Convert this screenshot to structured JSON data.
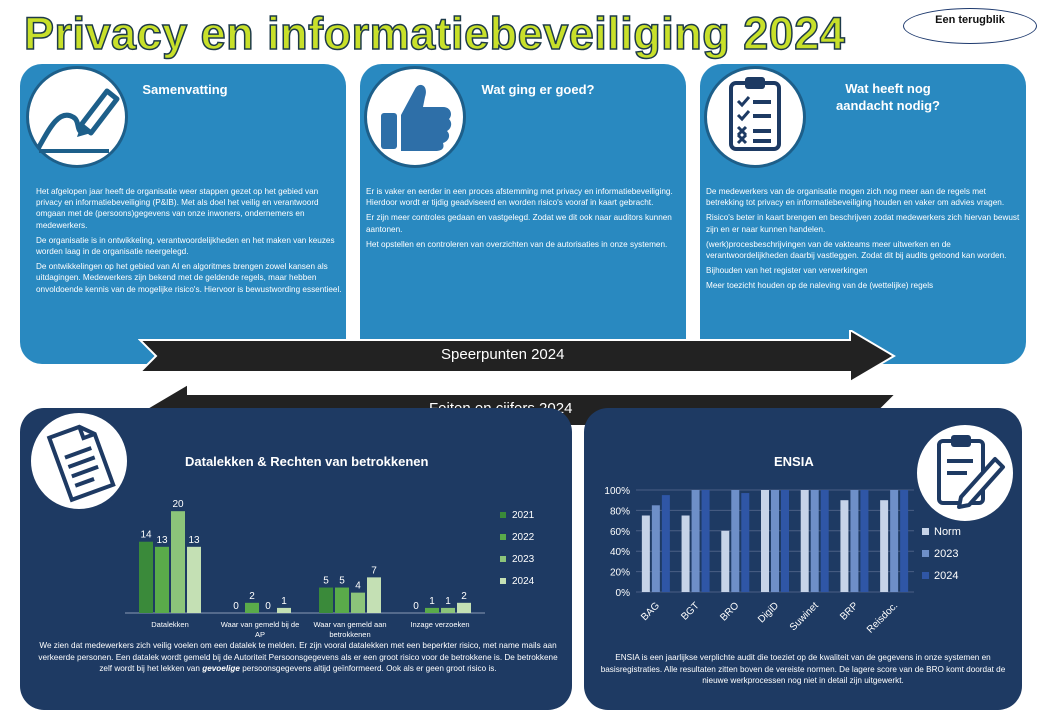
{
  "header": {
    "title": "Privacy en informatiebeveiliging 2024",
    "badge": "Een terugblik"
  },
  "panels": {
    "summary": {
      "title": "Samenvatting",
      "paragraphs": [
        "Het afgelopen jaar heeft de organisatie weer stappen gezet op het gebied van privacy en informatiebeveiliging (P&IB). Met als doel het veilig en verantwoord omgaan met de (persoons)gegevens van onze inwoners, ondernemers en medewerkers.",
        "De organisatie is in ontwikkeling, verantwoordelijkheden en het maken van keuzes worden laag in de organisatie neergelegd.",
        "De ontwikkelingen op het gebied van AI en algoritmes brengen zowel kansen als uitdagingen. Medewerkers zijn bekend met de geldende regels, maar hebben onvoldoende kennis van de mogelijke risico's. Hiervoor is bewustwording essentieel."
      ]
    },
    "good": {
      "title": "Wat ging er goed?",
      "paragraphs": [
        "Er is vaker en eerder in een proces afstemming met privacy en informatiebeveiliging. Hierdoor wordt er tijdig geadviseerd en worden risico's vooraf in kaart gebracht.",
        "Er zijn meer controles gedaan en vastgelegd. Zodat we dit ook naar auditors kunnen aantonen.",
        "Het opstellen en controleren van overzichten van de autorisaties in onze systemen."
      ]
    },
    "attention": {
      "title": "Wat heeft nog aandacht nodig?",
      "paragraphs": [
        "De medewerkers van de organisatie mogen zich nog meer aan de regels met betrekking tot privacy en informatiebeveiliging houden en vaker om advies vragen.",
        "Risico's beter in kaart brengen en beschrijven zodat medewerkers zich hiervan bewust zijn en er naar kunnen handelen.",
        "(werk)procesbeschrijvingen van de vakteams meer uitwerken en de verantwoordelijkheden daarbij vastleggen. Zodat dit bij audits getoond kan worden.",
        "Bijhouden van het register van verwerkingen",
        "Meer toezicht houden op de naleving van de (wettelijke) regels"
      ]
    }
  },
  "arrows": {
    "right_label": "Speerpunten 2024",
    "left_label": "Feiten en cijfers 2024"
  },
  "datalekken": {
    "text_before": "We zien dat medewerkers zich veilig voelen om een datalek te melden. Er zijn vooral datalekken met een beperkter risico, met name mails aan verkeerde personen. Een datalek wordt gemeld bij de Autoriteit Persoonsgegevens als er een groot risico voor de betrokkene is. De betrokkene zelf wordt bij het lekken van ",
    "text_em": "gevoelige",
    "text_after": " persoonsgegevens altijd geïnformeerd. Ook als er geen groot risico is."
  },
  "ensia": {
    "text": "ENSIA is een jaarlijkse verplichte audit die toeziet op de kwaliteit van de gegevens in onze systemen en basisregistraties. Alle resultaten zitten boven de vereiste normen. De lagere score van de BRO komt doordat de nieuwe werkprocessen nog niet in detail zijn uitgewerkt."
  },
  "colors": {
    "panel_top": "#2989c0",
    "panel_bottom": "#1e3a63",
    "title_green": "#c8e02a",
    "arrow": "#222222"
  },
  "chart_data": [
    {
      "type": "bar",
      "title": "Datalekken & Rechten van betrokkenen",
      "categories": [
        "Datalekken",
        "Waar van gemeld bij de AP",
        "Waar van gemeld aan betrokkenen",
        "Inzage verzoeken"
      ],
      "series": [
        {
          "name": "2021",
          "values": [
            14,
            0,
            5,
            0
          ],
          "color": "#3a8a3a"
        },
        {
          "name": "2022",
          "values": [
            13,
            2,
            5,
            1
          ],
          "color": "#5aab4a"
        },
        {
          "name": "2023",
          "values": [
            20,
            0,
            4,
            1
          ],
          "color": "#8cc47a"
        },
        {
          "name": "2024",
          "values": [
            13,
            1,
            7,
            2
          ],
          "color": "#c4e0b4"
        }
      ],
      "ylim": [
        0,
        22
      ],
      "legend": "right",
      "data_labels": true
    },
    {
      "type": "bar",
      "title": "ENSIA",
      "categories": [
        "BAG",
        "BGT",
        "BRO",
        "DigiD",
        "Suwinet",
        "BRP",
        "Reisdoc."
      ],
      "series": [
        {
          "name": "Norm",
          "values": [
            0.75,
            0.75,
            0.6,
            1.0,
            1.0,
            0.9,
            0.9
          ],
          "color": "#c6d3e8"
        },
        {
          "name": "2023",
          "values": [
            0.85,
            1.0,
            1.0,
            1.0,
            1.0,
            1.0,
            1.0
          ],
          "color": "#6e8fc8"
        },
        {
          "name": "2024",
          "values": [
            0.95,
            1.0,
            0.97,
            1.0,
            1.0,
            1.0,
            1.0
          ],
          "color": "#2f56a6"
        }
      ],
      "yticks": [
        "0%",
        "20%",
        "40%",
        "60%",
        "80%",
        "100%"
      ],
      "ylim": [
        0,
        1
      ],
      "grid": true,
      "legend": "right"
    }
  ]
}
